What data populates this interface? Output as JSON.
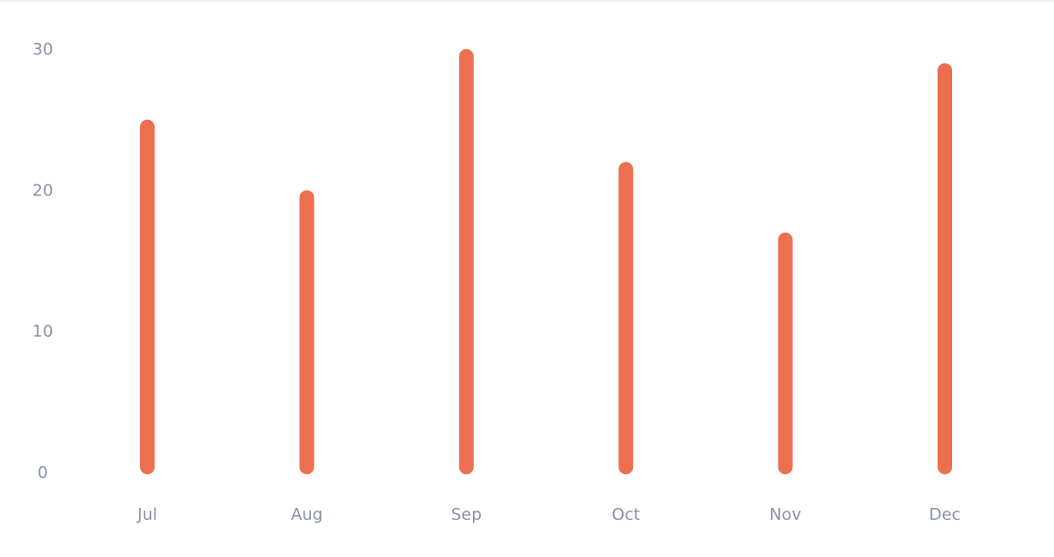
{
  "chart_data": {
    "type": "bar",
    "categories": [
      "Jul",
      "Aug",
      "Sep",
      "Oct",
      "Nov",
      "Dec"
    ],
    "values": [
      25,
      20,
      30,
      22,
      17,
      29
    ],
    "ylim": [
      0,
      30
    ],
    "yticks": [
      "0",
      "10",
      "20",
      "30"
    ],
    "grid": false,
    "bar_color": "#ec6f4f",
    "tick_color": "#8892a6"
  }
}
